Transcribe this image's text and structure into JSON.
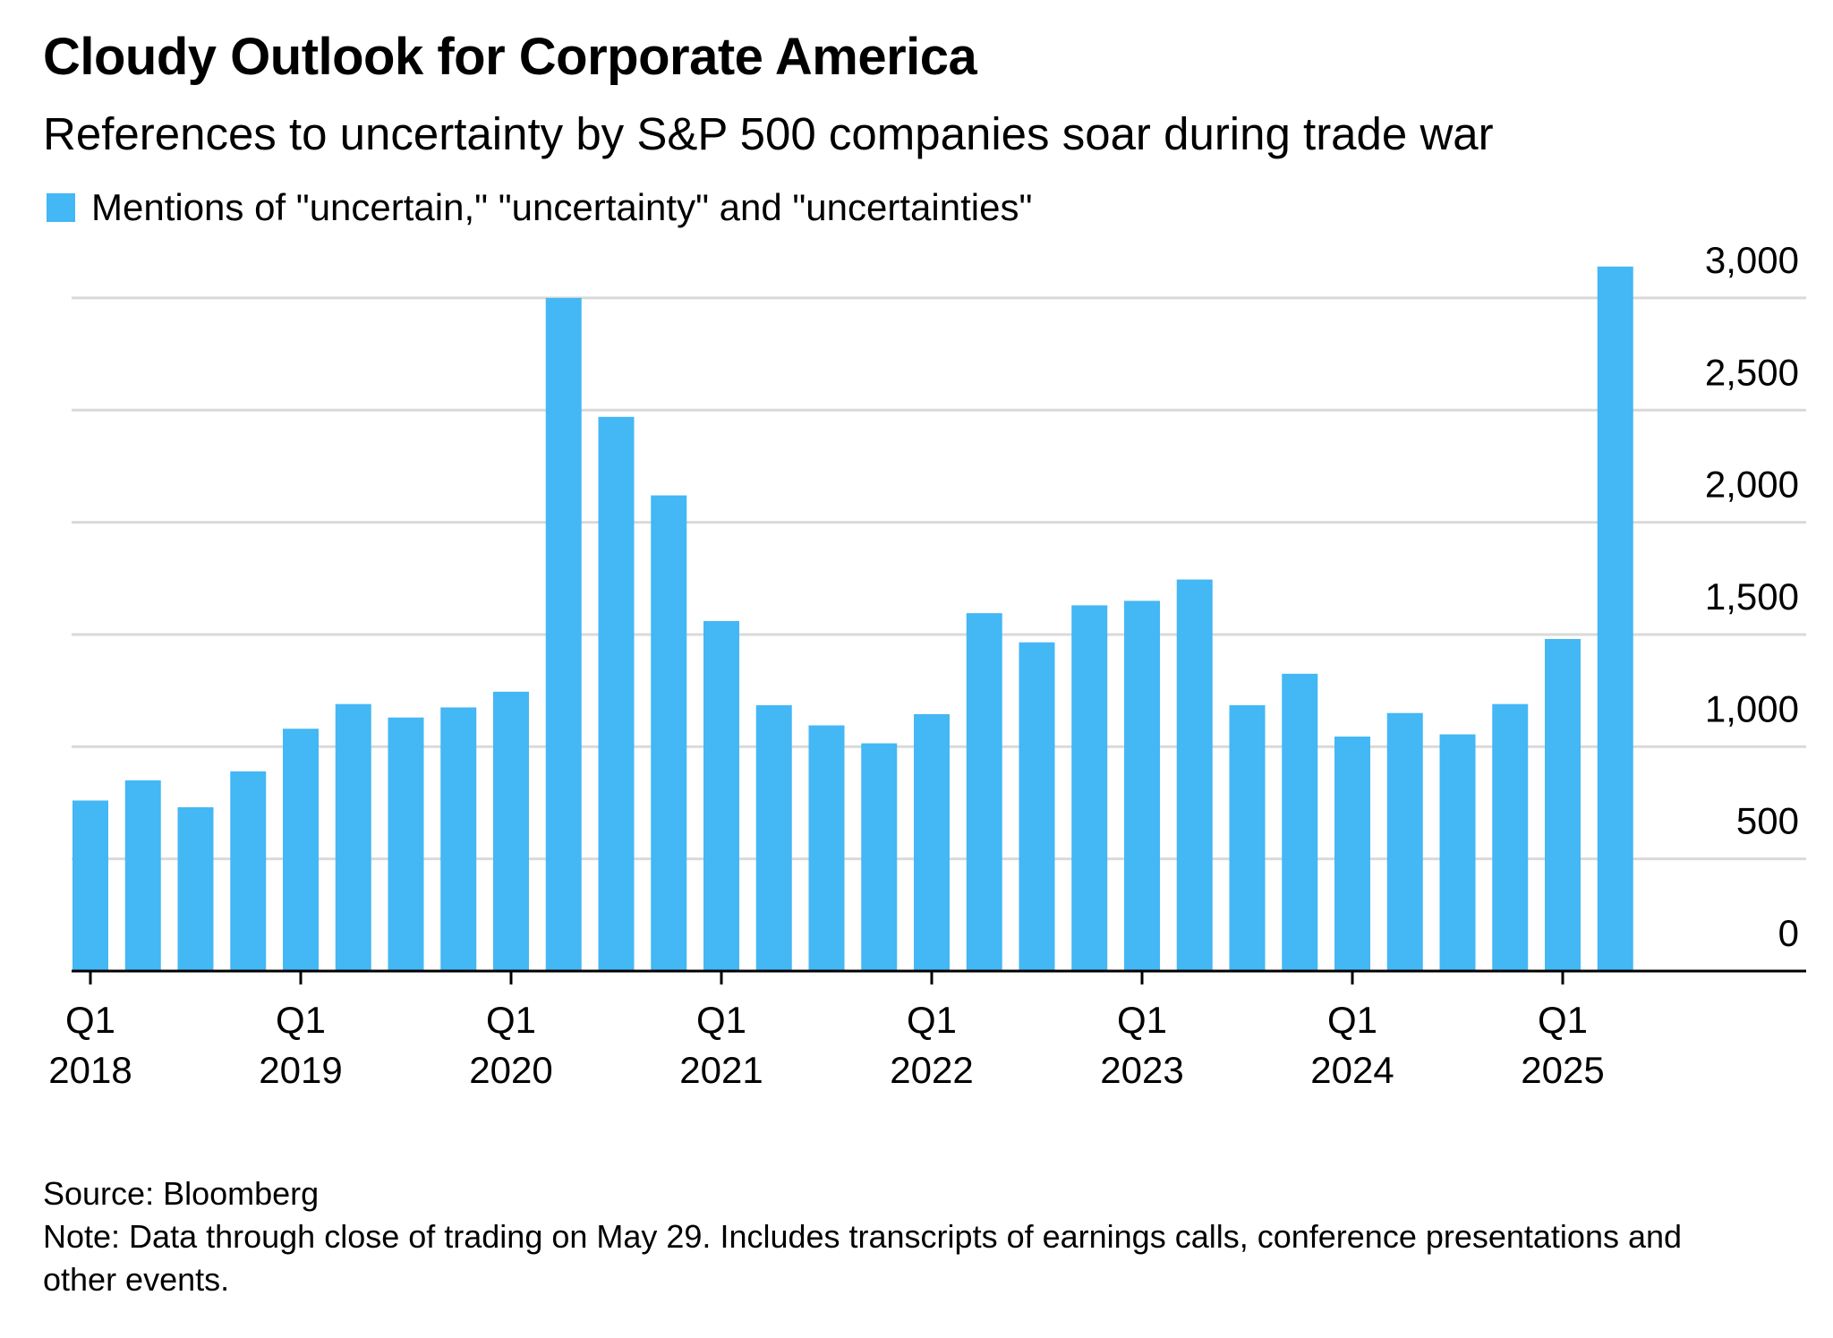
{
  "title": "Cloudy Outlook for Corporate America",
  "subtitle": "References to uncertainty by S&P 500 companies soar during trade war",
  "legend": {
    "label": "Mentions of \"uncertain,\" \"uncertainty\" and \"uncertainties\""
  },
  "footer": {
    "source": "Source: Bloomberg",
    "note": "Note: Data through close of trading on May 29. Includes transcripts of earnings calls, conference presentations and other events."
  },
  "colors": {
    "bar": "#44b7f5",
    "grid": "#d9d9d9",
    "axis": "#000000"
  },
  "chart_data": {
    "type": "bar",
    "title": "Cloudy Outlook for Corporate America",
    "subtitle": "References to uncertainty by S&P 500 companies soar during trade war",
    "xlabel": "",
    "ylabel": "",
    "ylim": [
      0,
      3000
    ],
    "y_ticks": [
      0,
      500,
      1000,
      1500,
      2000,
      2500,
      3000
    ],
    "y_tick_labels": [
      "0",
      "500",
      "1,000",
      "1,500",
      "2,000",
      "2,500",
      "3,000"
    ],
    "y_axis_side": "right",
    "grid": true,
    "legend_position": "top-left",
    "categories": [
      "Q1 2018",
      "Q2 2018",
      "Q3 2018",
      "Q4 2018",
      "Q1 2019",
      "Q2 2019",
      "Q3 2019",
      "Q4 2019",
      "Q1 2020",
      "Q2 2020",
      "Q3 2020",
      "Q4 2020",
      "Q1 2021",
      "Q2 2021",
      "Q3 2021",
      "Q4 2021",
      "Q1 2022",
      "Q2 2022",
      "Q3 2022",
      "Q4 2022",
      "Q1 2023",
      "Q2 2023",
      "Q3 2023",
      "Q4 2023",
      "Q1 2024",
      "Q2 2024",
      "Q3 2024",
      "Q4 2024",
      "Q1 2025",
      "Q2 2025"
    ],
    "x_tick_labels": [
      {
        "index": 0,
        "quarter": "Q1",
        "year": "2018"
      },
      {
        "index": 4,
        "quarter": "Q1",
        "year": "2019"
      },
      {
        "index": 8,
        "quarter": "Q1",
        "year": "2020"
      },
      {
        "index": 12,
        "quarter": "Q1",
        "year": "2021"
      },
      {
        "index": 16,
        "quarter": "Q1",
        "year": "2022"
      },
      {
        "index": 20,
        "quarter": "Q1",
        "year": "2023"
      },
      {
        "index": 24,
        "quarter": "Q1",
        "year": "2024"
      },
      {
        "index": 28,
        "quarter": "Q1",
        "year": "2025"
      }
    ],
    "series": [
      {
        "name": "Mentions of \"uncertain,\" \"uncertainty\" and \"uncertainties\"",
        "values": [
          760,
          850,
          730,
          890,
          1080,
          1190,
          1130,
          1175,
          1245,
          3000,
          2470,
          2120,
          1560,
          1185,
          1095,
          1015,
          1145,
          1595,
          1465,
          1630,
          1650,
          1745,
          1185,
          1325,
          1045,
          1150,
          1055,
          1190,
          1480,
          3140
        ]
      }
    ]
  }
}
